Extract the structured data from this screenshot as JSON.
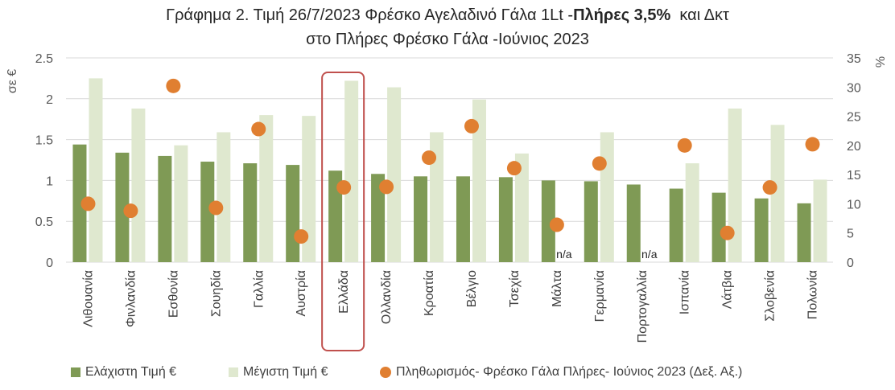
{
  "chart_data": {
    "type": "bar",
    "title_parts": [
      "Γράφημα 2. Τιμή 26/7/2023 Φρέσκο Αγελαδινό Γάλα 1Lt -",
      "Πλήρες 3,5%",
      "  και Δκτ",
      "στο Πλήρες Φρέσκο Γάλα -Ιούνιος 2023"
    ],
    "ylabel": "σε €",
    "y2label": "%",
    "ylim": [
      0,
      2.5
    ],
    "y2lim": [
      0,
      35
    ],
    "y_ticks": [
      "0",
      "0.5",
      "1",
      "1.5",
      "2",
      "2.5"
    ],
    "y2_ticks": [
      "0",
      "5",
      "10",
      "15",
      "20",
      "25",
      "30",
      "35"
    ],
    "categories": [
      "Λιθουανία",
      "Φινλανδία",
      "Εσθονία",
      "Σουηδία",
      "Γαλλία",
      "Αυστρία",
      "Ελλάδα",
      "Ολλανδία",
      "Κροατία",
      "Βέλγιο",
      "Τσεχία",
      "Μάλτα",
      "Γερμανία",
      "Πορτογαλλία",
      "Ισπανία",
      "Λάτβια",
      "Σλοβενία",
      "Πολωνία"
    ],
    "highlight_category": "Ελλάδα",
    "series": [
      {
        "name": "Ελάχιστη Τιμή €",
        "kind": "bar",
        "axis": "left",
        "color": "#7f9a55",
        "values": [
          1.44,
          1.34,
          1.3,
          1.23,
          1.21,
          1.19,
          1.12,
          1.08,
          1.05,
          1.05,
          1.04,
          1.0,
          0.99,
          0.95,
          0.9,
          0.85,
          0.78,
          0.72
        ]
      },
      {
        "name": "Μέγιστη Τιμή €",
        "kind": "bar",
        "axis": "left",
        "color": "#dfe8cf",
        "values": [
          2.25,
          1.88,
          1.43,
          1.59,
          1.8,
          1.79,
          2.22,
          2.14,
          1.59,
          1.99,
          1.33,
          null,
          1.59,
          null,
          1.21,
          1.88,
          1.68,
          1.01
        ]
      },
      {
        "name": "Πληθωρισμός- Φρέσκο Γάλα Πλήρες- Ιούνιος 2023 (Δεξ. Αξ.)",
        "kind": "scatter",
        "axis": "right",
        "color": "#e07f31",
        "values": [
          10.0,
          8.8,
          30.2,
          9.3,
          22.8,
          4.4,
          12.8,
          12.9,
          17.9,
          23.3,
          16.1,
          6.4,
          16.9,
          null,
          20.0,
          5.0,
          12.8,
          20.2
        ]
      }
    ],
    "na_label": "n/a",
    "na_categories": [
      "Μάλτα",
      "Πορτογαλλία"
    ],
    "grid": true,
    "legend_position": "bottom"
  }
}
